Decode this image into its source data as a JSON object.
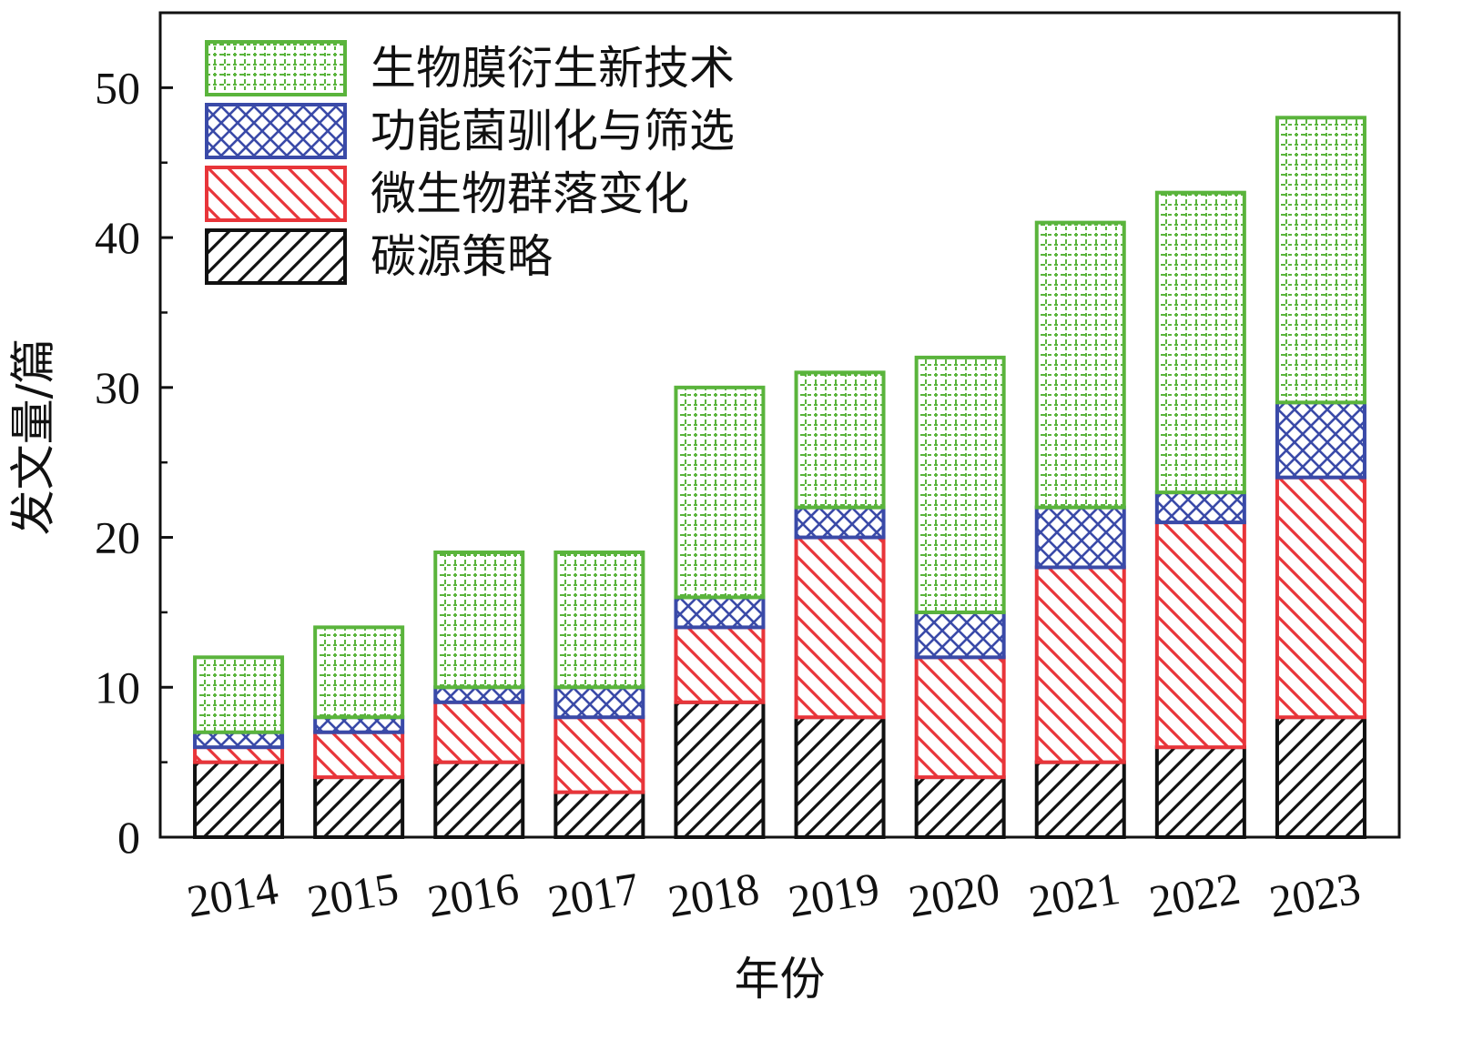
{
  "chart_data": {
    "type": "bar",
    "stacked": true,
    "title": "",
    "xlabel": "年份",
    "ylabel": "发文量/篇",
    "ylim": [
      0,
      55
    ],
    "yticks": [
      0,
      10,
      20,
      30,
      40,
      50
    ],
    "categories": [
      "2014",
      "2015",
      "2016",
      "2017",
      "2018",
      "2019",
      "2020",
      "2021",
      "2022",
      "2023"
    ],
    "legend_position": "top-left",
    "grid": false,
    "series": [
      {
        "name": "碳源策略",
        "color": "#111111",
        "pattern": "diagonal-hatch",
        "values": [
          5,
          4,
          5,
          3,
          9,
          8,
          4,
          5,
          6,
          8
        ]
      },
      {
        "name": "微生物群落变化",
        "color": "#e8353a",
        "pattern": "diagonal-hatch",
        "values": [
          1,
          3,
          4,
          5,
          5,
          12,
          8,
          13,
          15,
          16
        ]
      },
      {
        "name": "功能菌驯化与筛选",
        "color": "#3a4aa8",
        "pattern": "cross-hatch",
        "values": [
          1,
          1,
          1,
          2,
          2,
          2,
          3,
          4,
          2,
          5
        ]
      },
      {
        "name": "生物膜衍生新技术",
        "color": "#5ab43c",
        "pattern": "dotted-grid",
        "values": [
          5,
          6,
          9,
          9,
          14,
          9,
          17,
          19,
          20,
          19
        ]
      }
    ],
    "legend_order": [
      3,
      2,
      1,
      0
    ]
  }
}
